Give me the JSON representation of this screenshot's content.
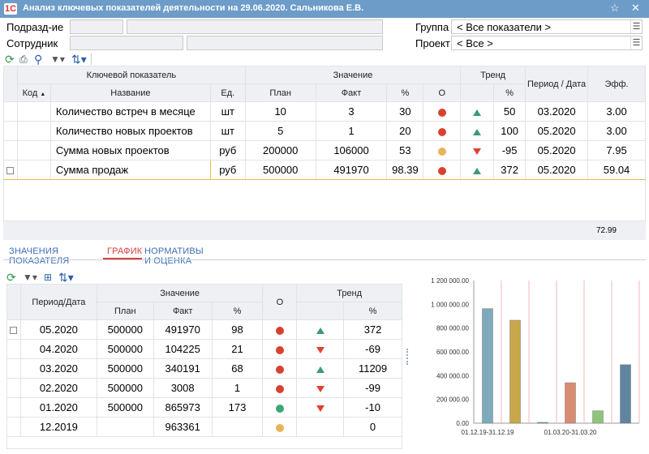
{
  "window": {
    "title": "Анализ ключевых показателей деятельности на 29.06.2020. Сальникова Е.В.",
    "app_icon": "1c-app-icon",
    "buttons": [
      "star-icon",
      "close-icon"
    ]
  },
  "filters": {
    "division_label": "Подразд-ие",
    "employee_label": "Сотрудник",
    "group_label": "Группа",
    "group_value": "< Все показатели >",
    "project_label": "Проект",
    "project_value": "< Все >"
  },
  "main_table": {
    "group_headers": {
      "indicator": "Ключевой показатель",
      "value": "Значение",
      "trend": "Тренд"
    },
    "headers": {
      "code": "Код",
      "name": "Название",
      "unit": "Ед.",
      "plan": "План",
      "fact": "Факт",
      "pct": "%",
      "o": "О",
      "trend_pct": "%",
      "period": "Период / Дата",
      "eff": "Эфф."
    },
    "rows": [
      {
        "name": "Количество встреч в месяце",
        "unit": "шт",
        "plan": "10",
        "fact": "3",
        "pct": "30",
        "status": "red",
        "trend": "up",
        "trend_pct": "50",
        "period": "03.2020",
        "eff": "3.00"
      },
      {
        "name": "Количество новых проектов",
        "unit": "шт",
        "plan": "5",
        "fact": "1",
        "pct": "20",
        "status": "red",
        "trend": "up",
        "trend_pct": "100",
        "period": "05.2020",
        "eff": "3.00"
      },
      {
        "name": "Сумма новых проектов",
        "unit": "руб",
        "plan": "200000",
        "fact": "106000",
        "pct": "53",
        "status": "yellow",
        "trend": "down",
        "trend_pct": "-95",
        "period": "05.2020",
        "eff": "7.95"
      },
      {
        "name": "Сумма продаж",
        "unit": "руб",
        "plan": "500000",
        "fact": "491970",
        "pct": "98.39",
        "status": "red",
        "trend": "up",
        "trend_pct": "372",
        "period": "05.2020",
        "eff": "59.04"
      }
    ],
    "total_eff": "72.99"
  },
  "tabs": {
    "values": "ЗНАЧЕНИЯ ПОКАЗАТЕЛЯ",
    "chart": "ГРАФИК",
    "norms": "НОРМАТИВЫ И ОЦЕНКА"
  },
  "detail_table": {
    "group_headers": {
      "value": "Значение",
      "trend": "Тренд"
    },
    "headers": {
      "period": "Период/Дата",
      "plan": "План",
      "fact": "Факт",
      "pct": "%",
      "o": "О",
      "trend_pct": "%"
    },
    "rows": [
      {
        "period": "05.2020",
        "plan": "500000",
        "fact": "491970",
        "pct": "98",
        "status": "red",
        "trend": "up",
        "trend_pct": "372"
      },
      {
        "period": "04.2020",
        "plan": "500000",
        "fact": "104225",
        "pct": "21",
        "status": "red",
        "trend": "down",
        "trend_pct": "-69"
      },
      {
        "period": "03.2020",
        "plan": "500000",
        "fact": "340191",
        "pct": "68",
        "status": "red",
        "trend": "up",
        "trend_pct": "11209"
      },
      {
        "period": "02.2020",
        "plan": "500000",
        "fact": "3008",
        "pct": "1",
        "status": "red",
        "trend": "down",
        "trend_pct": "-99"
      },
      {
        "period": "01.2020",
        "plan": "500000",
        "fact": "865973",
        "pct": "173",
        "status": "green",
        "trend": "down",
        "trend_pct": "-10"
      },
      {
        "period": "12.2019",
        "plan": "",
        "fact": "963361",
        "pct": "",
        "status": "yellow",
        "trend": "",
        "trend_pct": "0"
      }
    ]
  },
  "colors": {
    "red": "#d9412f",
    "yellow": "#e8b45a",
    "green": "#3aa878",
    "up": "#3a9a77",
    "down": "#e0402f",
    "title_bar": "#6d9cc9"
  },
  "chart_data": {
    "type": "bar",
    "categories": [
      "12.2019",
      "01.2020",
      "02.2020",
      "03.2020",
      "04.2020",
      "05.2020"
    ],
    "values": [
      963361,
      865973,
      3008,
      340191,
      104225,
      491970
    ],
    "bar_colors": [
      "#7fa9bc",
      "#c9a84a",
      "#5f8aa0",
      "#d98c72",
      "#8fc47c",
      "#5f85a0"
    ],
    "x_tick_labels": [
      "01.12.19-31.12.19",
      "01.03.20-31.03.20"
    ],
    "y_tick_labels": [
      "0.00",
      "200 000.00",
      "400 000.00",
      "600 000.00",
      "800 000.00",
      "1 000 000.00",
      "1 200 000.00"
    ],
    "ylim": [
      0,
      1200000
    ],
    "grid": true
  }
}
